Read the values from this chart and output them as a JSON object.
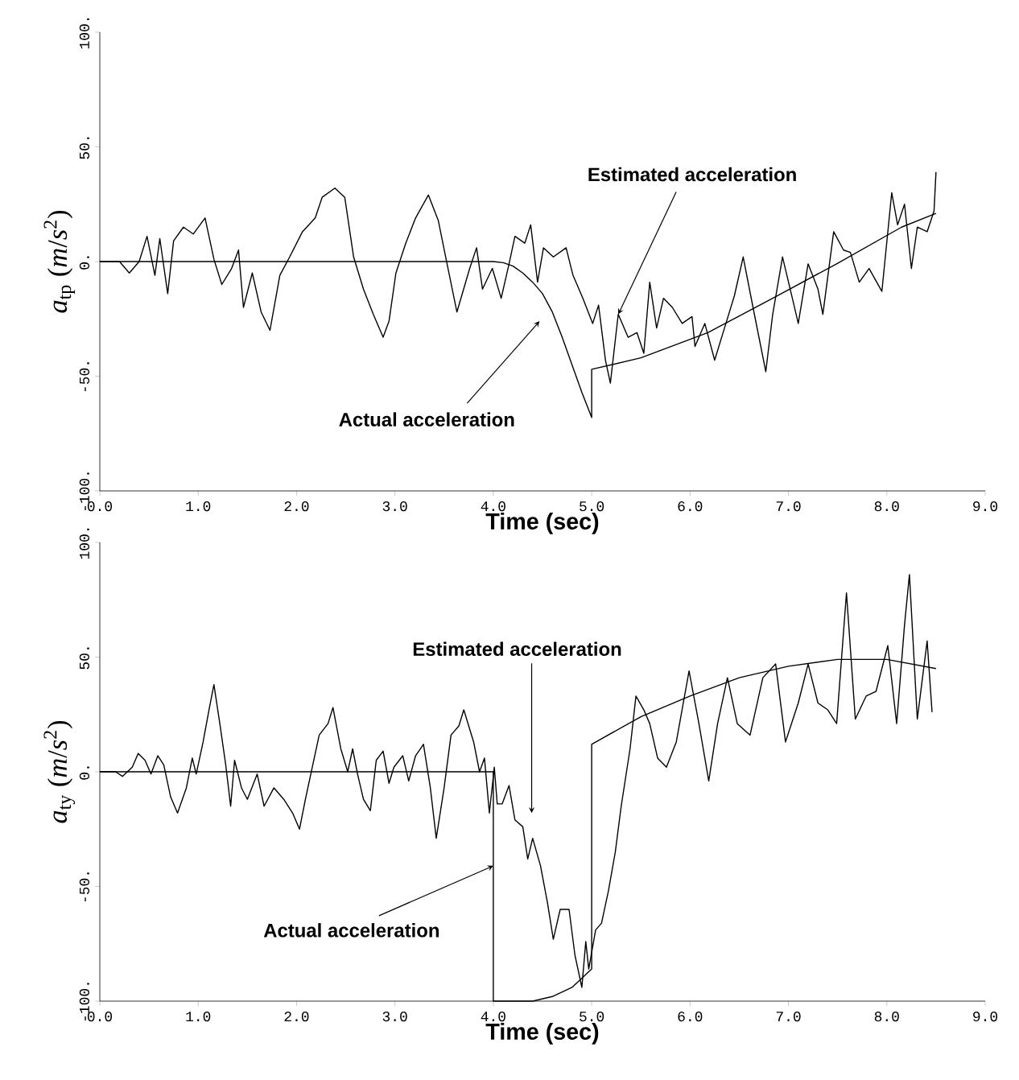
{
  "chart_data": [
    {
      "type": "line",
      "xlabel": "Time (sec)",
      "ylabel": "*a*$_{tp}$ (*m*/*s*$^{2}$)",
      "xlim": [
        0,
        9
      ],
      "ylim": [
        -100,
        100
      ],
      "marker": "none",
      "line_style": "solid",
      "xticks": [
        {
          "value": 0,
          "label": "0.0"
        },
        {
          "value": 1,
          "label": "1.0"
        },
        {
          "value": 2,
          "label": "2.0"
        },
        {
          "value": 3,
          "label": "3.0"
        },
        {
          "value": 4,
          "label": "4.0"
        },
        {
          "value": 5,
          "label": "5.0"
        },
        {
          "value": 6,
          "label": "6.0"
        },
        {
          "value": 7,
          "label": "7.0"
        },
        {
          "value": 8,
          "label": "8.0"
        },
        {
          "value": 9,
          "label": "9.0"
        }
      ],
      "yticks": [
        {
          "value": -100,
          "label": "-100."
        },
        {
          "value": -50,
          "label": "-50."
        },
        {
          "value": 0,
          "label": "0."
        },
        {
          "value": 50,
          "label": "50."
        },
        {
          "value": 100,
          "label": "100."
        }
      ],
      "series": [
        {
          "color": "#000000",
          "x": [
            0,
            0.2,
            0.3,
            0.4,
            0.48,
            0.56,
            0.61,
            0.69,
            0.75,
            0.85,
            0.95,
            1.07,
            1.16,
            1.24,
            1.34,
            1.41,
            1.46,
            1.55,
            1.64,
            1.73,
            1.83,
            1.93,
            2.06,
            2.19,
            2.26,
            2.39,
            2.49,
            2.58,
            2.68,
            2.78,
            2.88,
            2.94,
            3.01,
            3.11,
            3.21,
            3.34,
            3.44,
            3.53,
            3.63,
            3.76,
            3.83,
            3.89,
            3.99,
            4.08,
            4.16,
            4.22,
            4.32,
            4.38,
            4.45,
            4.51,
            4.61,
            4.74,
            4.81,
            4.91,
            5.01,
            5.07,
            5.14,
            5.19,
            5.27,
            5.37,
            5.46,
            5.53,
            5.59,
            5.66,
            5.73,
            5.82,
            5.92,
            6.02,
            6.05,
            6.15,
            6.25,
            6.35,
            6.45,
            6.54,
            6.64,
            6.77,
            6.84,
            6.94,
            7.04,
            7.1,
            7.2,
            7.3,
            7.35,
            7.46,
            7.56,
            7.63,
            7.72,
            7.82,
            7.95,
            8.05,
            8.11,
            8.18,
            8.25,
            8.31,
            8.41,
            8.48,
            8.5
          ],
          "values": [
            0,
            0,
            -5,
            0,
            11,
            -6,
            10,
            -14,
            9,
            15,
            12,
            19,
            1,
            -10,
            -3,
            5,
            -20,
            -5,
            -22,
            -30,
            -6,
            2,
            13,
            19,
            28,
            32,
            28,
            2,
            -12,
            -23,
            -33,
            -26,
            -5,
            8,
            19,
            29,
            18,
            -1,
            -22,
            -3,
            6,
            -12,
            -3,
            -16,
            -1,
            11,
            8,
            16,
            -9,
            6,
            2,
            6,
            -6,
            -16,
            -27,
            -19,
            -43,
            -53,
            -23,
            -33,
            -31,
            -40,
            -9,
            -29,
            -16,
            -20,
            -27,
            -24,
            -37,
            -27,
            -43,
            -29,
            -15,
            2,
            -20,
            -48,
            -23,
            2,
            -16,
            -27,
            -1,
            -12,
            -23,
            13,
            5,
            4,
            -9,
            -3,
            -13,
            30,
            16,
            25,
            -3,
            15,
            13,
            22,
            39
          ]
        },
        {
          "color": "#000000",
          "x": [
            0,
            4.0,
            4.1,
            4.2,
            4.3,
            4.4,
            4.5,
            4.6,
            4.7,
            4.8,
            4.9,
            5.0,
            5.0,
            5.5,
            6.18,
            6.84,
            7.49,
            8.15,
            8.5
          ],
          "values": [
            0,
            0,
            -0.5,
            -2,
            -5,
            -9,
            -14,
            -22,
            -33,
            -45,
            -57,
            -68,
            -47,
            -42,
            -31,
            -16,
            -1,
            15,
            21
          ]
        }
      ],
      "annotations": [
        {
          "text": "Estimated acceleration",
          "x": 5.27,
          "y": -23
        },
        {
          "text": "Actual acceleration",
          "x": 4.47,
          "y": -26
        }
      ]
    },
    {
      "type": "line",
      "xlabel": "Time (sec)",
      "ylabel": "*a*$_{ty}$ (*m*/*s*$^{2}$)",
      "xlim": [
        0,
        9
      ],
      "ylim": [
        -100,
        100
      ],
      "marker": "none",
      "line_style": "solid",
      "xticks": [
        {
          "value": 0,
          "label": "0.0"
        },
        {
          "value": 1,
          "label": "1.0"
        },
        {
          "value": 2,
          "label": "2.0"
        },
        {
          "value": 3,
          "label": "3.0"
        },
        {
          "value": 4,
          "label": "4.0"
        },
        {
          "value": 5,
          "label": "5.0"
        },
        {
          "value": 6,
          "label": "6.0"
        },
        {
          "value": 7,
          "label": "7.0"
        },
        {
          "value": 8,
          "label": "8.0"
        },
        {
          "value": 9,
          "label": "9.0"
        }
      ],
      "yticks": [
        {
          "value": -100,
          "label": "-100."
        },
        {
          "value": -50,
          "label": "-50."
        },
        {
          "value": 0,
          "label": "0."
        },
        {
          "value": 50,
          "label": "50."
        },
        {
          "value": 100,
          "label": "100."
        }
      ],
      "series": [
        {
          "color": "#000000",
          "x": [
            0,
            0.16,
            0.23,
            0.33,
            0.39,
            0.46,
            0.52,
            0.59,
            0.65,
            0.72,
            0.79,
            0.88,
            0.94,
            0.98,
            1.05,
            1.11,
            1.16,
            1.22,
            1.28,
            1.33,
            1.37,
            1.44,
            1.5,
            1.6,
            1.67,
            1.77,
            1.87,
            1.96,
            2.03,
            2.09,
            2.16,
            2.23,
            2.32,
            2.37,
            2.45,
            2.52,
            2.57,
            2.62,
            2.68,
            2.75,
            2.81,
            2.88,
            2.94,
            2.99,
            3.08,
            3.14,
            3.21,
            3.29,
            3.36,
            3.42,
            3.5,
            3.57,
            3.65,
            3.7,
            3.8,
            3.86,
            3.91,
            3.96,
            4.01,
            4.04,
            4.09,
            4.16,
            4.22,
            4.3,
            4.35,
            4.4,
            4.48,
            4.55,
            4.61,
            4.68,
            4.77,
            4.83,
            4.9,
            4.94,
            4.97,
            5.04,
            5.1,
            5.17,
            5.24,
            5.3,
            5.39,
            5.45,
            5.53,
            5.59,
            5.67,
            5.76,
            5.86,
            5.99,
            6.09,
            6.19,
            6.28,
            6.38,
            6.48,
            6.61,
            6.74,
            6.87,
            6.97,
            7.1,
            7.2,
            7.3,
            7.4,
            7.49,
            7.59,
            7.68,
            7.79,
            7.89,
            8.01,
            8.1,
            8.18,
            8.23,
            8.31,
            8.41,
            8.46
          ],
          "values": [
            0,
            0,
            -2,
            2,
            8,
            5,
            -1,
            7,
            3,
            -11,
            -18,
            -7,
            6,
            -1,
            13,
            27,
            38,
            21,
            3,
            -15,
            5,
            -7,
            -12,
            -1,
            -15,
            -7,
            -12,
            -18,
            -25,
            -12,
            2,
            16,
            21,
            28,
            10,
            0,
            10,
            -1,
            -12,
            -17,
            5,
            9,
            -5,
            2,
            7,
            -4,
            7,
            12,
            -7,
            -29,
            -7,
            16,
            20,
            27,
            13,
            0,
            6,
            -18,
            2,
            -14,
            -14,
            -6,
            -21,
            -24,
            -38,
            -29,
            -41,
            -57,
            -73,
            -60,
            -60,
            -80,
            -94,
            -74,
            -86,
            -69,
            -66,
            -52,
            -35,
            -15,
            10,
            33,
            27,
            21,
            6,
            2,
            13,
            44,
            21,
            -4,
            21,
            41,
            21,
            16,
            41,
            47,
            13,
            30,
            47,
            30,
            27,
            21,
            78,
            23,
            33,
            35,
            55,
            21,
            64,
            86,
            23,
            57,
            26
          ]
        },
        {
          "color": "#000000",
          "x": [
            0,
            4.0,
            4.0,
            4.4,
            4.6,
            4.8,
            5.0,
            5.0,
            5.5,
            6.0,
            6.5,
            7.0,
            7.5,
            8.0,
            8.5
          ],
          "values": [
            0,
            0,
            -100,
            -100,
            -98,
            -94,
            -86,
            12,
            24,
            33,
            41,
            46,
            49,
            49,
            45
          ]
        }
      ],
      "annotations": [
        {
          "text": "Estimated acceleration",
          "x": 4.39,
          "y": -18
        },
        {
          "text": "Actual acceleration",
          "x": 4.0,
          "y": -41
        }
      ]
    }
  ]
}
